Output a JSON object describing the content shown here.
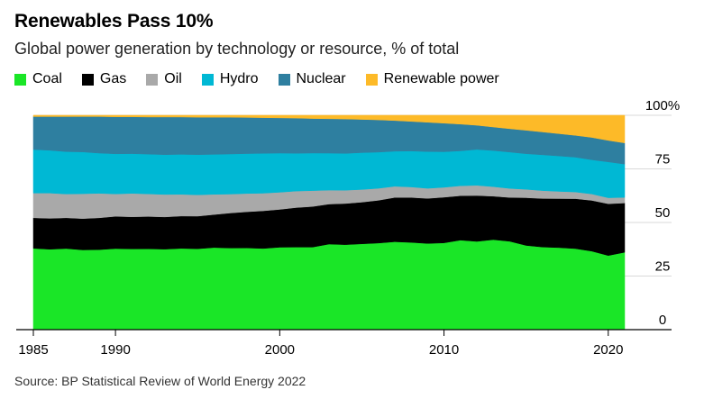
{
  "title": "Renewables Pass 10%",
  "subtitle": "Global power generation by technology or resource, % of total",
  "source": "Source: BP Statistical Review of World Energy 2022",
  "legend": [
    {
      "label": "Coal",
      "color": "#1ae627"
    },
    {
      "label": "Gas",
      "color": "#000000"
    },
    {
      "label": "Oil",
      "color": "#a9a9a9"
    },
    {
      "label": "Hydro",
      "color": "#00b8d4"
    },
    {
      "label": "Nuclear",
      "color": "#2e7fa0"
    },
    {
      "label": "Renewable power",
      "color": "#fdba28"
    }
  ],
  "chart_data": {
    "type": "area",
    "stacked": true,
    "title": "Renewables Pass 10%",
    "subtitle": "Global power generation by technology or resource, % of total",
    "x": [
      1985,
      1986,
      1987,
      1988,
      1989,
      1990,
      1991,
      1992,
      1993,
      1994,
      1995,
      1996,
      1997,
      1998,
      1999,
      2000,
      2001,
      2002,
      2003,
      2004,
      2005,
      2006,
      2007,
      2008,
      2009,
      2010,
      2011,
      2012,
      2013,
      2014,
      2015,
      2016,
      2017,
      2018,
      2019,
      2020,
      2021
    ],
    "xticks": [
      1985,
      1990,
      2000,
      2010,
      2020
    ],
    "xtick_labels": [
      "1985",
      "1990",
      "2000",
      "2010",
      "2020"
    ],
    "ylim": [
      0,
      100
    ],
    "yticks": [
      0,
      25,
      50,
      75,
      100
    ],
    "ytick_labels": [
      "0",
      "25",
      "50",
      "75",
      "100%"
    ],
    "series": [
      {
        "name": "Coal",
        "color": "#1ae627",
        "values": [
          37.5,
          37.2,
          37.5,
          37.2,
          37.2,
          37.2,
          37.2,
          37.2,
          37.2,
          37.4,
          37.2,
          37.8,
          37.5,
          37.5,
          37.3,
          37.9,
          38.0,
          38.0,
          39.3,
          39.0,
          39.3,
          39.7,
          40.1,
          39.8,
          39.4,
          39.5,
          40.5,
          39.8,
          40.6,
          40.1,
          38.1,
          37.6,
          37.5,
          37.5,
          36.5,
          34.5,
          35.8
        ]
      },
      {
        "name": "Gas",
        "color": "#000000",
        "values": [
          14.1,
          14.3,
          14.2,
          14.6,
          14.8,
          14.8,
          14.8,
          14.9,
          14.9,
          14.9,
          15.0,
          15.2,
          16.1,
          16.6,
          17.3,
          17.4,
          18.2,
          18.7,
          18.4,
          18.9,
          19.1,
          19.6,
          20.2,
          20.5,
          20.6,
          20.8,
          20.1,
          20.7,
          19.6,
          19.9,
          21.6,
          22.1,
          22.4,
          23.1,
          23.6,
          24.1,
          22.8
        ]
      },
      {
        "name": "Oil",
        "color": "#a9a9a9",
        "values": [
          11.4,
          11.7,
          11.0,
          11.6,
          11.4,
          10.3,
          10.8,
          10.4,
          10.4,
          10.0,
          9.8,
          9.3,
          8.7,
          8.4,
          8.1,
          7.9,
          7.6,
          7.3,
          6.4,
          6.1,
          5.8,
          5.5,
          5.1,
          4.8,
          4.6,
          4.5,
          4.5,
          4.6,
          4.3,
          4.1,
          3.8,
          3.6,
          3.3,
          3.1,
          3.0,
          2.8,
          2.6
        ]
      },
      {
        "name": "Hydro",
        "color": "#00b8d4",
        "values": [
          20.1,
          19.8,
          19.6,
          19.5,
          18.7,
          18.4,
          18.3,
          18.3,
          18.4,
          18.4,
          18.5,
          18.4,
          18.4,
          18.3,
          18.3,
          18.0,
          17.4,
          17.3,
          17.0,
          16.9,
          16.9,
          16.6,
          16.0,
          16.4,
          16.8,
          16.2,
          15.8,
          16.2,
          16.3,
          16.5,
          16.1,
          16.3,
          16.2,
          16.1,
          15.9,
          16.7,
          15.4
        ]
      },
      {
        "name": "Nuclear",
        "color": "#2e7fa0",
        "values": [
          15.2,
          15.6,
          16.2,
          16.5,
          17.0,
          17.0,
          17.0,
          17.1,
          17.4,
          17.2,
          17.2,
          17.1,
          16.9,
          16.6,
          16.4,
          16.2,
          16.2,
          15.9,
          15.8,
          15.8,
          15.2,
          14.8,
          14.0,
          13.5,
          13.4,
          13.0,
          12.1,
          10.9,
          10.6,
          10.6,
          10.6,
          10.4,
          10.2,
          10.1,
          10.4,
          10.0,
          9.8
        ]
      },
      {
        "name": "Renewable power",
        "color": "#fdba28",
        "values": [
          0.6,
          0.6,
          0.6,
          0.6,
          0.6,
          0.7,
          0.7,
          0.8,
          0.8,
          0.8,
          0.9,
          0.9,
          0.9,
          1.0,
          1.1,
          1.2,
          1.3,
          1.5,
          1.6,
          1.7,
          1.9,
          2.1,
          2.4,
          2.8,
          3.2,
          3.6,
          4.0,
          4.5,
          5.3,
          6.1,
          6.8,
          7.6,
          8.4,
          9.3,
          10.3,
          11.7,
          12.8
        ]
      }
    ]
  }
}
